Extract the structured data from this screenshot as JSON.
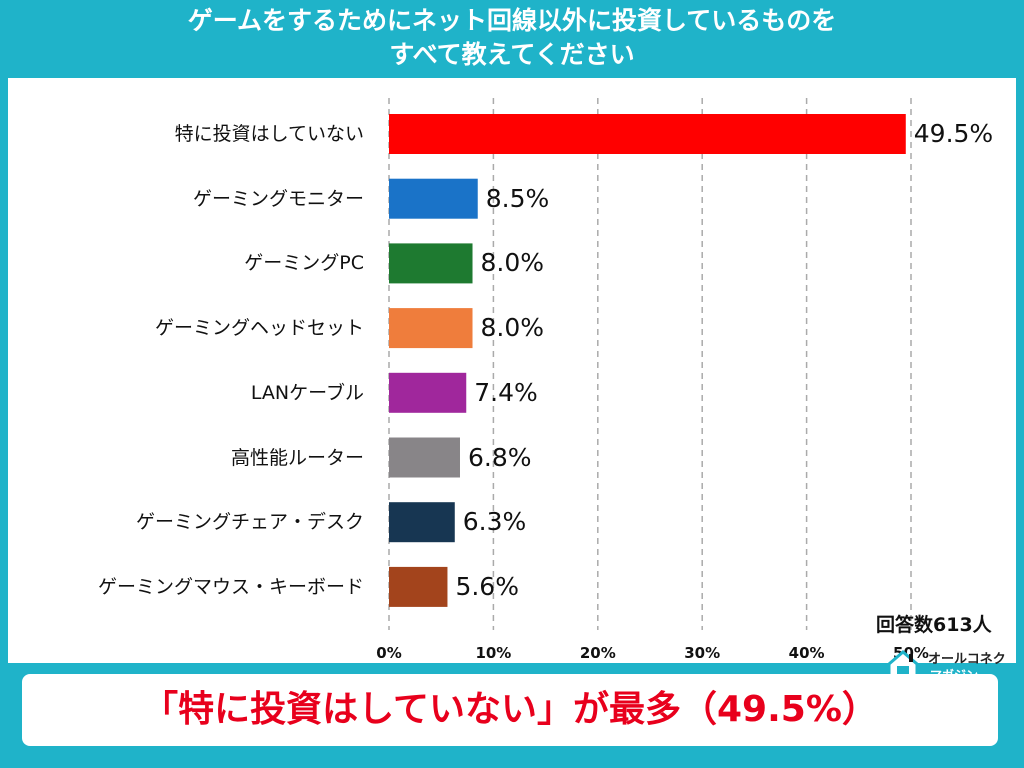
{
  "title": {
    "line1": "ゲームをするためにネット回線以外に投資しているものを",
    "line2": "すべて教えてください"
  },
  "chart_data": {
    "type": "bar",
    "orientation": "horizontal",
    "categories": [
      "特に投資はしていない",
      "ゲーミングモニター",
      "ゲーミングPC",
      "ゲーミングヘッドセット",
      "LANケーブル",
      "高性能ルーター",
      "ゲーミングチェア・デスク",
      "ゲーミングマウス・キーボード"
    ],
    "values": [
      49.5,
      8.5,
      8.0,
      8.0,
      7.4,
      6.8,
      6.3,
      5.6
    ],
    "value_labels": [
      "49.5%",
      "8.5%",
      "8.0%",
      "8.0%",
      "7.4%",
      "6.8%",
      "6.3%",
      "5.6%"
    ],
    "colors": [
      "#ff0000",
      "#1a73c8",
      "#1e7a30",
      "#ef7d3c",
      "#a0279c",
      "#888588",
      "#173652",
      "#a3441c"
    ],
    "xticks": [
      "0%",
      "10%",
      "20%",
      "30%",
      "40%",
      "50%"
    ],
    "xlim": [
      0,
      50
    ],
    "grid": "vertical dashed"
  },
  "respondents": "回答数613人",
  "logo": {
    "top": "オールコネクト",
    "bottom": "マガジン"
  },
  "banner": "「特に投資はしていない」が最多（49.5%）"
}
